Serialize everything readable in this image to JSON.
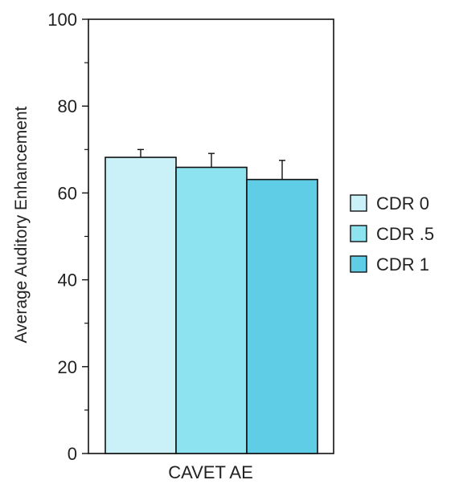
{
  "chart_data": {
    "type": "bar",
    "title": "",
    "xlabel": "",
    "ylabel": "Average Auditory Enhancement",
    "categories": [
      "CAVET AE"
    ],
    "series": [
      {
        "name": "CDR 0",
        "values": [
          68.2
        ],
        "error": [
          1.8
        ],
        "color": "#c9f1f7"
      },
      {
        "name": "CDR .5",
        "values": [
          65.9
        ],
        "error": [
          3.2
        ],
        "color": "#8ee3f0"
      },
      {
        "name": "CDR 1",
        "values": [
          63.1
        ],
        "error": [
          4.4
        ],
        "color": "#5fcde6"
      }
    ],
    "ylim": [
      0,
      100
    ],
    "yticks": [
      0,
      20,
      40,
      60,
      80,
      100
    ],
    "grid": false,
    "legend": "right"
  }
}
